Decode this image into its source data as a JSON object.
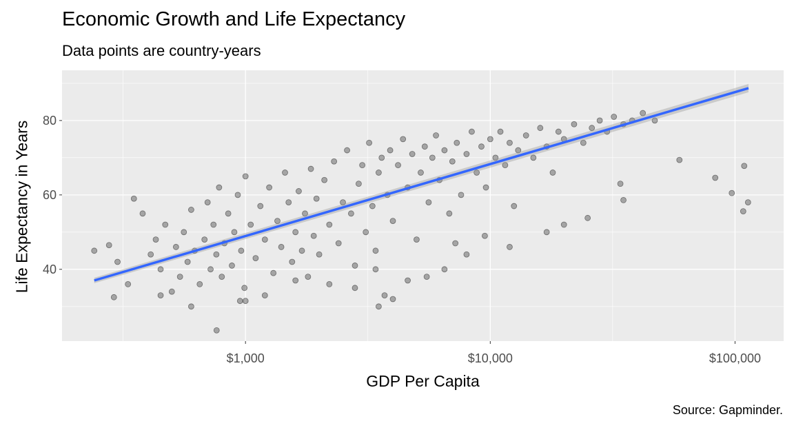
{
  "chart_data": {
    "type": "scatter",
    "title": "Economic Growth and Life Expectancy",
    "subtitle": "Data points are country-years",
    "xlabel": "GDP Per Capita",
    "ylabel": "Life Expectancy in Years",
    "caption": "Source: Gapminder.",
    "x_scale": "log10",
    "xlim": [
      178,
      158000
    ],
    "ylim": [
      20.7,
      93.5
    ],
    "x_ticks": [
      {
        "value": 1000,
        "label": "$1,000"
      },
      {
        "value": 10000,
        "label": "$10,000"
      },
      {
        "value": 100000,
        "label": "$100,000"
      }
    ],
    "y_ticks": [
      {
        "value": 40,
        "label": "40"
      },
      {
        "value": 60,
        "label": "60"
      },
      {
        "value": 80,
        "label": "80"
      }
    ],
    "grid": true,
    "point_color": "#000000",
    "point_alpha": 0.3,
    "trend_color": "#3366FF",
    "trend_line": {
      "x": [
        241,
        113523
      ],
      "y": [
        37.0,
        88.7
      ]
    },
    "points": [
      [
        241,
        45
      ],
      [
        277,
        46.5
      ],
      [
        290,
        32.5
      ],
      [
        300,
        42
      ],
      [
        331,
        36
      ],
      [
        350,
        59
      ],
      [
        380,
        55
      ],
      [
        410,
        44
      ],
      [
        430,
        48
      ],
      [
        450,
        40
      ],
      [
        450,
        33
      ],
      [
        470,
        52
      ],
      [
        500,
        34
      ],
      [
        520,
        46
      ],
      [
        540,
        38
      ],
      [
        560,
        50
      ],
      [
        580,
        42
      ],
      [
        600,
        56
      ],
      [
        600,
        30
      ],
      [
        620,
        45
      ],
      [
        650,
        36
      ],
      [
        680,
        48
      ],
      [
        700,
        58
      ],
      [
        720,
        40
      ],
      [
        740,
        52
      ],
      [
        760,
        44
      ],
      [
        762,
        23.6
      ],
      [
        780,
        62
      ],
      [
        800,
        38
      ],
      [
        820,
        47
      ],
      [
        850,
        55
      ],
      [
        880,
        41
      ],
      [
        900,
        50
      ],
      [
        930,
        60
      ],
      [
        950,
        31.5
      ],
      [
        960,
        45
      ],
      [
        990,
        35
      ],
      [
        1000,
        65
      ],
      [
        1000,
        31.5
      ],
      [
        1050,
        52
      ],
      [
        1100,
        43
      ],
      [
        1150,
        57
      ],
      [
        1200,
        48
      ],
      [
        1200,
        33
      ],
      [
        1250,
        62
      ],
      [
        1300,
        39
      ],
      [
        1350,
        53
      ],
      [
        1400,
        46
      ],
      [
        1450,
        66
      ],
      [
        1500,
        58
      ],
      [
        1550,
        42
      ],
      [
        1600,
        50
      ],
      [
        1600,
        37
      ],
      [
        1650,
        61
      ],
      [
        1700,
        45
      ],
      [
        1750,
        55
      ],
      [
        1800,
        38
      ],
      [
        1850,
        67
      ],
      [
        1900,
        49
      ],
      [
        1950,
        59
      ],
      [
        2000,
        44
      ],
      [
        2100,
        64
      ],
      [
        2200,
        52
      ],
      [
        2200,
        36
      ],
      [
        2300,
        69
      ],
      [
        2400,
        47
      ],
      [
        2500,
        58
      ],
      [
        2600,
        72
      ],
      [
        2700,
        55
      ],
      [
        2800,
        41
      ],
      [
        2800,
        35
      ],
      [
        2900,
        63
      ],
      [
        3000,
        68
      ],
      [
        3100,
        50
      ],
      [
        3200,
        74
      ],
      [
        3300,
        57
      ],
      [
        3400,
        45
      ],
      [
        3400,
        40
      ],
      [
        3500,
        66
      ],
      [
        3500,
        30
      ],
      [
        3600,
        70
      ],
      [
        3700,
        33
      ],
      [
        3800,
        60
      ],
      [
        3900,
        72
      ],
      [
        4000,
        53
      ],
      [
        4000,
        32
      ],
      [
        4200,
        68
      ],
      [
        4400,
        75
      ],
      [
        4600,
        62
      ],
      [
        4600,
        37
      ],
      [
        4800,
        71
      ],
      [
        5000,
        48
      ],
      [
        5200,
        66
      ],
      [
        5400,
        73
      ],
      [
        5500,
        38
      ],
      [
        5600,
        58
      ],
      [
        5800,
        70
      ],
      [
        6000,
        76
      ],
      [
        6200,
        64
      ],
      [
        6500,
        72
      ],
      [
        6500,
        40
      ],
      [
        6800,
        55
      ],
      [
        7000,
        69
      ],
      [
        7200,
        47
      ],
      [
        7300,
        74
      ],
      [
        7600,
        60
      ],
      [
        8000,
        71
      ],
      [
        8000,
        44
      ],
      [
        8400,
        77
      ],
      [
        8800,
        66
      ],
      [
        9200,
        73
      ],
      [
        9500,
        49
      ],
      [
        9600,
        62
      ],
      [
        10000,
        75
      ],
      [
        10500,
        70
      ],
      [
        11000,
        77
      ],
      [
        11500,
        68
      ],
      [
        12000,
        74
      ],
      [
        12000,
        46
      ],
      [
        12500,
        57
      ],
      [
        13000,
        72
      ],
      [
        14000,
        76
      ],
      [
        15000,
        70
      ],
      [
        16000,
        78
      ],
      [
        17000,
        73
      ],
      [
        17000,
        50
      ],
      [
        18000,
        66
      ],
      [
        19000,
        77
      ],
      [
        20000,
        75
      ],
      [
        20000,
        52
      ],
      [
        22000,
        79
      ],
      [
        24000,
        74
      ],
      [
        25000,
        53.8
      ],
      [
        26000,
        78
      ],
      [
        28000,
        80
      ],
      [
        30000,
        77
      ],
      [
        32000,
        81
      ],
      [
        34000,
        63
      ],
      [
        35000,
        79
      ],
      [
        35000,
        58.6
      ],
      [
        38000,
        80
      ],
      [
        42000,
        82
      ],
      [
        47000,
        80
      ],
      [
        59265,
        69.4
      ],
      [
        83000,
        64.6
      ],
      [
        97000,
        60.5
      ],
      [
        108000,
        55.6
      ],
      [
        109000,
        67.8
      ],
      [
        113000,
        58
      ]
    ]
  }
}
